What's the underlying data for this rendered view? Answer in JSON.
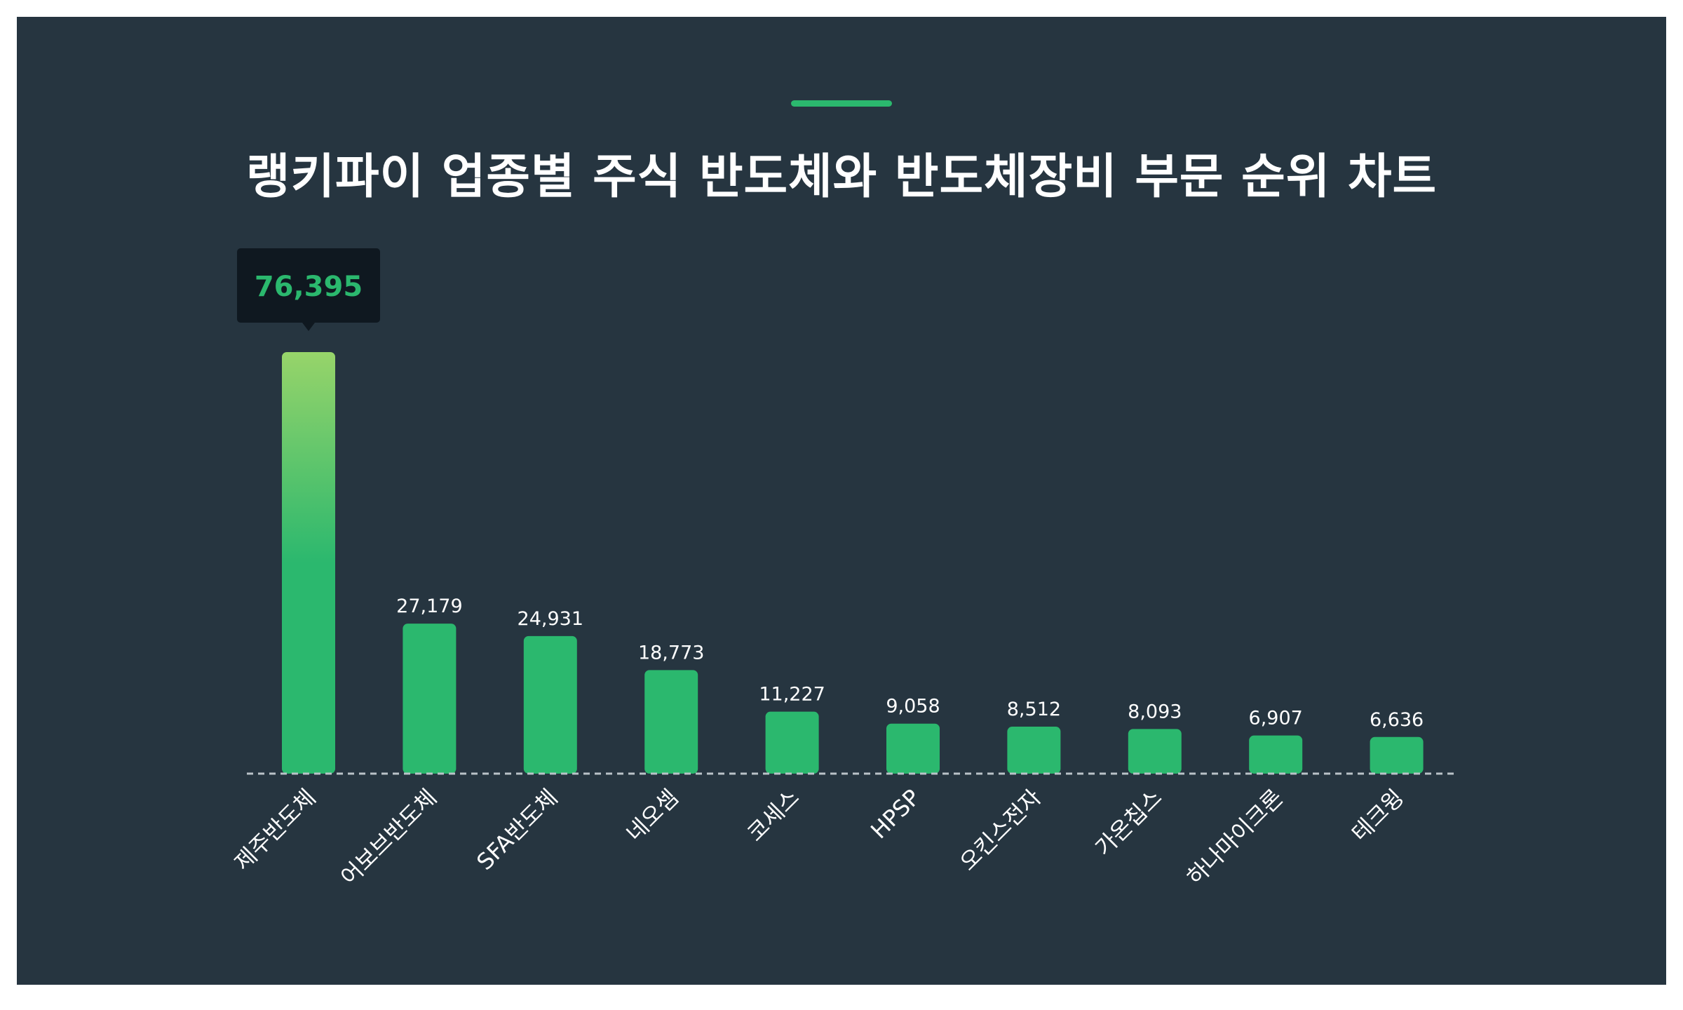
{
  "title": "랭키파이 업종별 주식 반도체와 반도체장비 부문 순위 차트",
  "colors": {
    "background": "#263540",
    "accent": "#2bb86e",
    "bar": "#2bb86e",
    "bar_highlight_top": "#97d46a",
    "tooltip_bg": "#0f1820",
    "tooltip_text": "#2bb86e",
    "text": "#ffffff"
  },
  "chart_data": {
    "type": "bar",
    "title": "랭키파이 업종별 주식 반도체와 반도체장비 부문 순위 차트",
    "xlabel": "",
    "ylabel": "",
    "categories": [
      "제주반도체",
      "어보브반도체",
      "SFA반도체",
      "네오셈",
      "코세스",
      "HPSP",
      "오킨스전자",
      "가온칩스",
      "하나마이크론",
      "테크윙"
    ],
    "values": [
      76395,
      27179,
      24931,
      18773,
      11227,
      9058,
      8512,
      8093,
      6907,
      6636
    ],
    "value_labels": [
      "76,395",
      "27,179",
      "24,931",
      "18,773",
      "11,227",
      "9,058",
      "8,512",
      "8,093",
      "6,907",
      "6,636"
    ],
    "ylim": [
      0,
      76395
    ],
    "grid": false,
    "highlight_index": 0,
    "baseline": "dashed"
  }
}
